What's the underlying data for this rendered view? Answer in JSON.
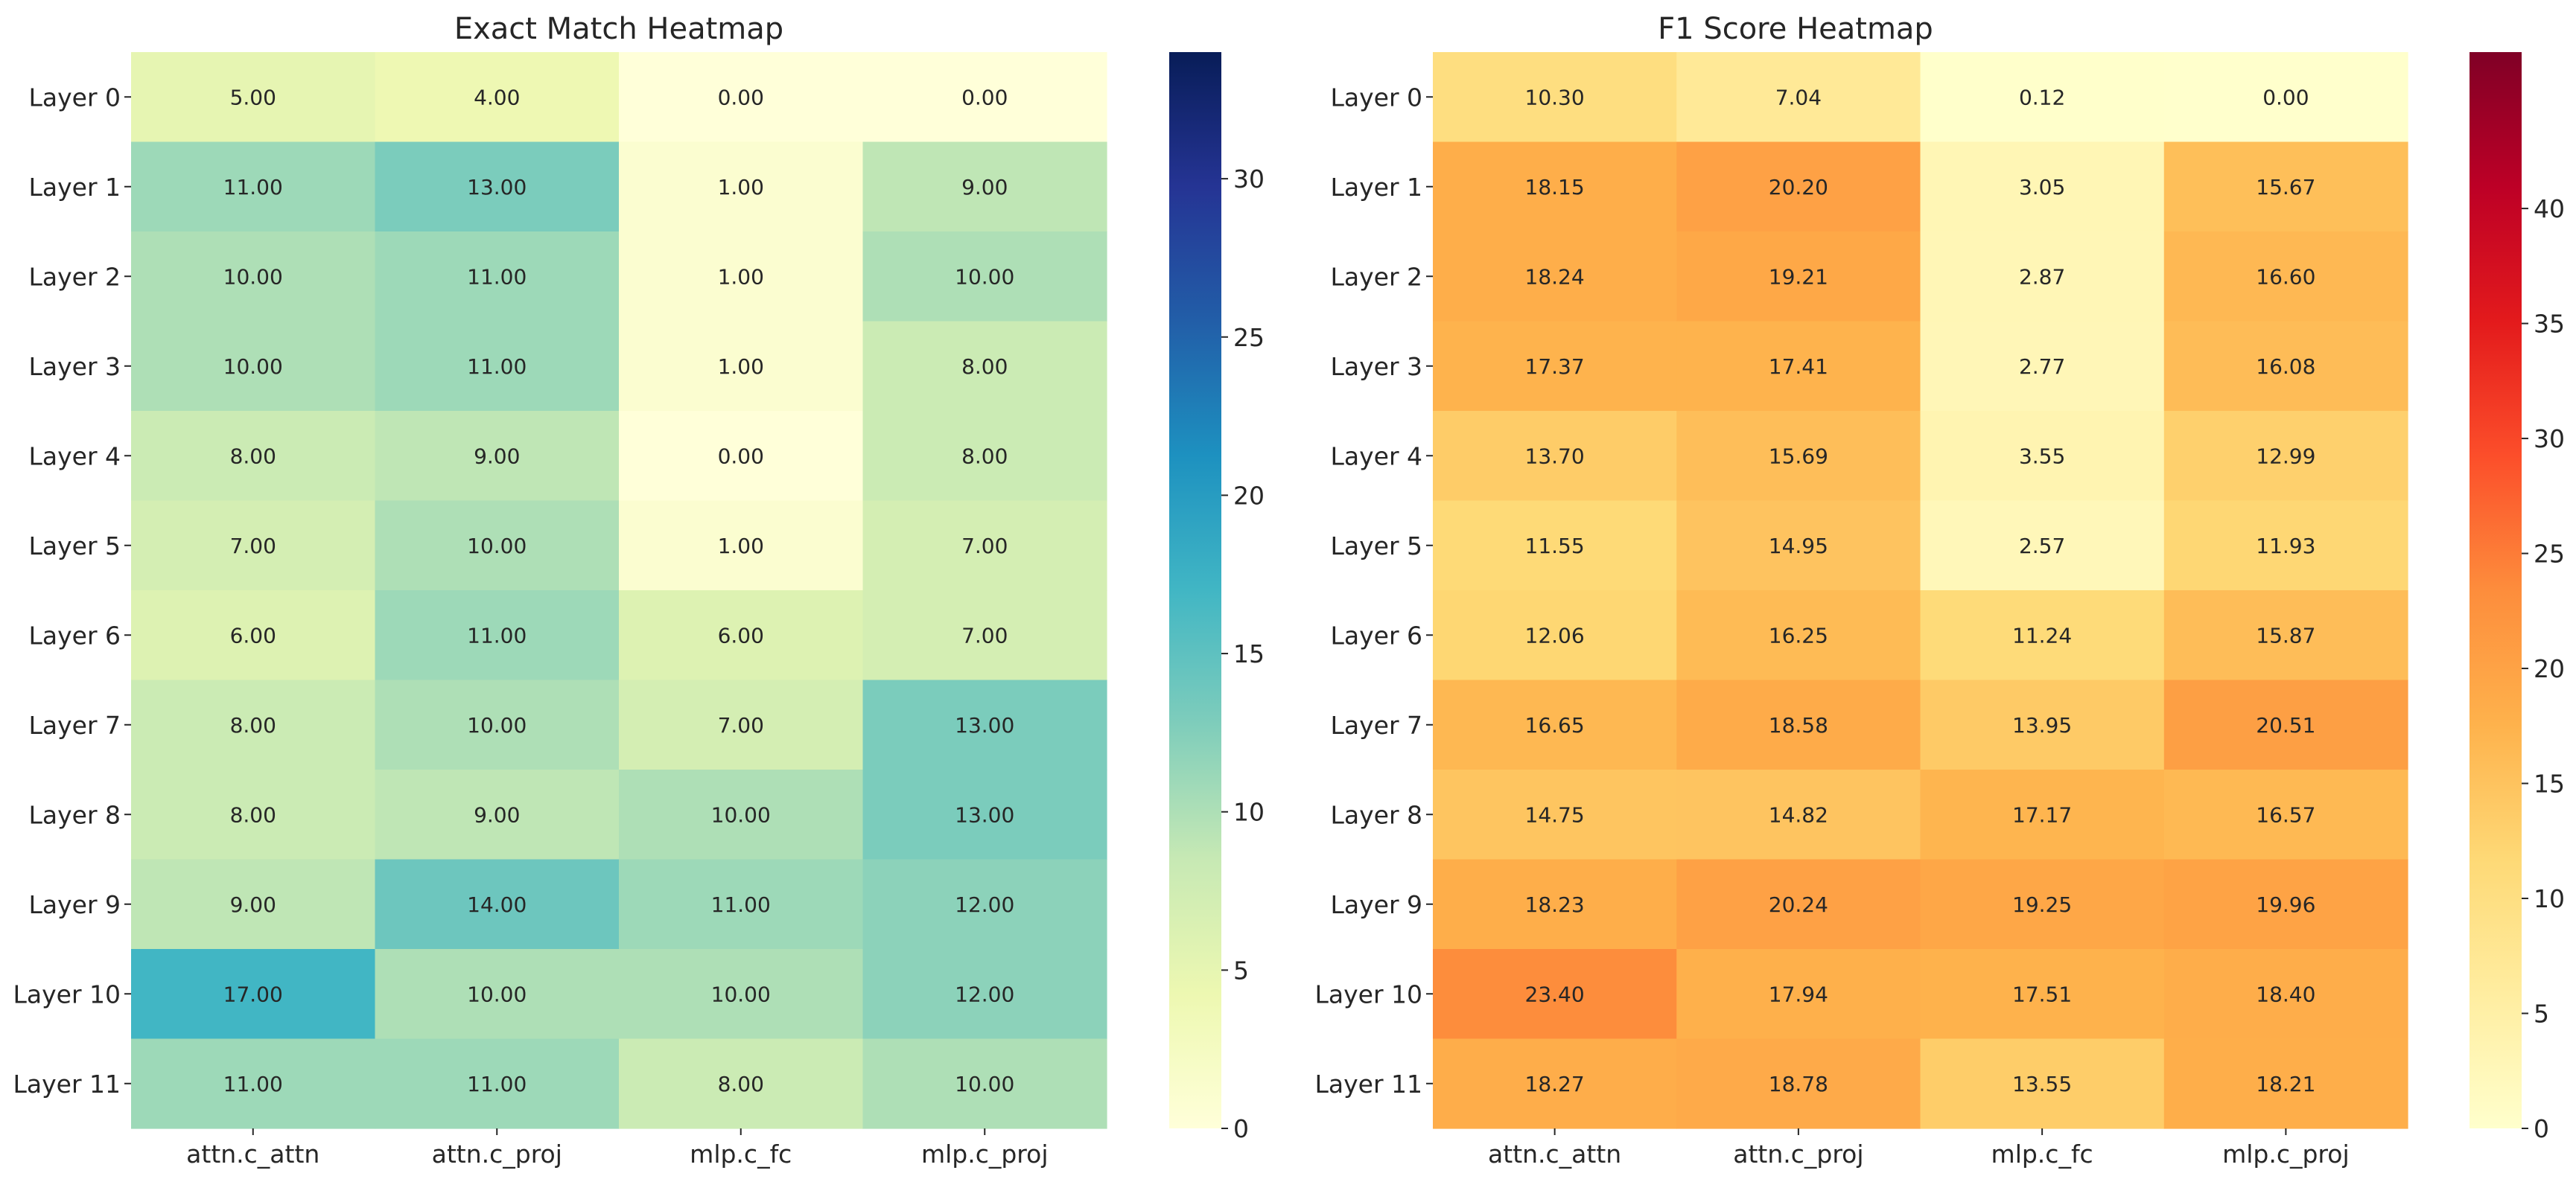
{
  "chart_data": [
    {
      "type": "heatmap",
      "title": "Exact Match Heatmap",
      "xlabel": "",
      "ylabel": "",
      "x_categories": [
        "attn.c_attn",
        "attn.c_proj",
        "mlp.c_fc",
        "mlp.c_proj"
      ],
      "y_categories": [
        "Layer 0",
        "Layer 1",
        "Layer 2",
        "Layer 3",
        "Layer 4",
        "Layer 5",
        "Layer 6",
        "Layer 7",
        "Layer 8",
        "Layer 9",
        "Layer 10",
        "Layer 11"
      ],
      "values": [
        [
          5.0,
          4.0,
          0.0,
          0.0
        ],
        [
          11.0,
          13.0,
          1.0,
          9.0
        ],
        [
          10.0,
          11.0,
          1.0,
          10.0
        ],
        [
          10.0,
          11.0,
          1.0,
          8.0
        ],
        [
          8.0,
          9.0,
          0.0,
          8.0
        ],
        [
          7.0,
          10.0,
          1.0,
          7.0
        ],
        [
          6.0,
          11.0,
          6.0,
          7.0
        ],
        [
          8.0,
          10.0,
          7.0,
          13.0
        ],
        [
          8.0,
          9.0,
          10.0,
          13.0
        ],
        [
          9.0,
          14.0,
          11.0,
          12.0
        ],
        [
          17.0,
          10.0,
          10.0,
          12.0
        ],
        [
          11.0,
          11.0,
          8.0,
          10.0
        ]
      ],
      "colormap": "YlGnBu",
      "colorbar_range": [
        0,
        34
      ],
      "colorbar_ticks": [
        0,
        5,
        10,
        15,
        20,
        25,
        30
      ],
      "value_format": "0.00"
    },
    {
      "type": "heatmap",
      "title": "F1 Score Heatmap",
      "xlabel": "",
      "ylabel": "",
      "x_categories": [
        "attn.c_attn",
        "attn.c_proj",
        "mlp.c_fc",
        "mlp.c_proj"
      ],
      "y_categories": [
        "Layer 0",
        "Layer 1",
        "Layer 2",
        "Layer 3",
        "Layer 4",
        "Layer 5",
        "Layer 6",
        "Layer 7",
        "Layer 8",
        "Layer 9",
        "Layer 10",
        "Layer 11"
      ],
      "values": [
        [
          10.3,
          7.04,
          0.12,
          0.0
        ],
        [
          18.15,
          20.2,
          3.05,
          15.67
        ],
        [
          18.24,
          19.21,
          2.87,
          16.6
        ],
        [
          17.37,
          17.41,
          2.77,
          16.08
        ],
        [
          13.7,
          15.69,
          3.55,
          12.99
        ],
        [
          11.55,
          14.95,
          2.57,
          11.93
        ],
        [
          12.06,
          16.25,
          11.24,
          15.87
        ],
        [
          16.65,
          18.58,
          13.95,
          20.51
        ],
        [
          14.75,
          14.82,
          17.17,
          16.57
        ],
        [
          18.23,
          20.24,
          19.25,
          19.96
        ],
        [
          23.4,
          17.94,
          17.51,
          18.4
        ],
        [
          18.27,
          18.78,
          13.55,
          18.21
        ]
      ],
      "colormap": "YlOrRd",
      "colorbar_range": [
        0,
        46.8
      ],
      "colorbar_ticks": [
        0,
        5,
        10,
        15,
        20,
        25,
        30,
        35,
        40
      ],
      "value_format": "0.00"
    }
  ]
}
